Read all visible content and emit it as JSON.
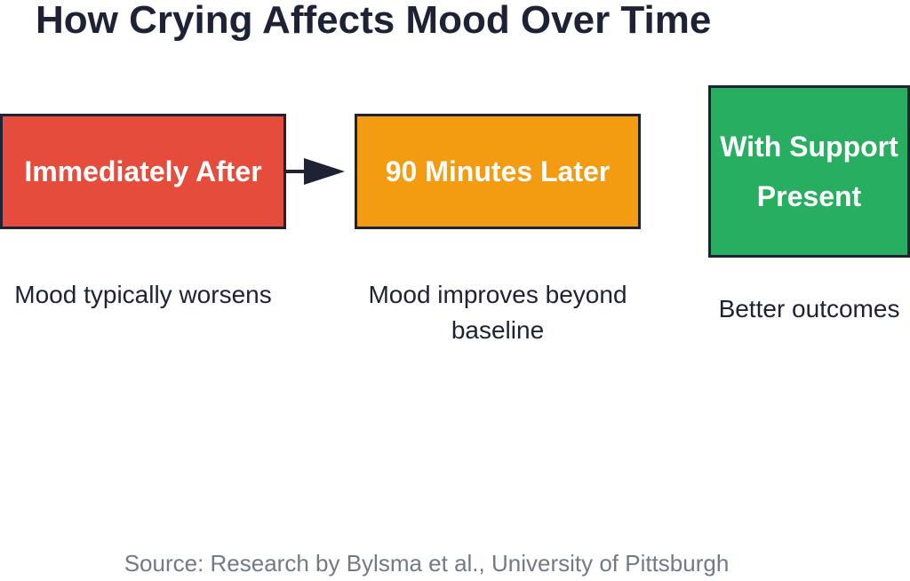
{
  "title": "How Crying Affects Mood Over Time",
  "stages": [
    {
      "label": "Immediately After",
      "description": "Mood typically worsens",
      "color": "#e64c3c"
    },
    {
      "label": "90 Minutes Later",
      "description": "Mood improves beyond baseline",
      "color": "#f39c12"
    },
    {
      "label": "With Support Present",
      "description": "Better outcomes",
      "color": "#27ae60"
    }
  ],
  "source": "Source: Research by Bylsma et al., University of Pittsburgh",
  "colors": {
    "text": "#1e2235",
    "source_text": "#737988",
    "border": "#1e2235",
    "arrow": "#1e2235"
  }
}
